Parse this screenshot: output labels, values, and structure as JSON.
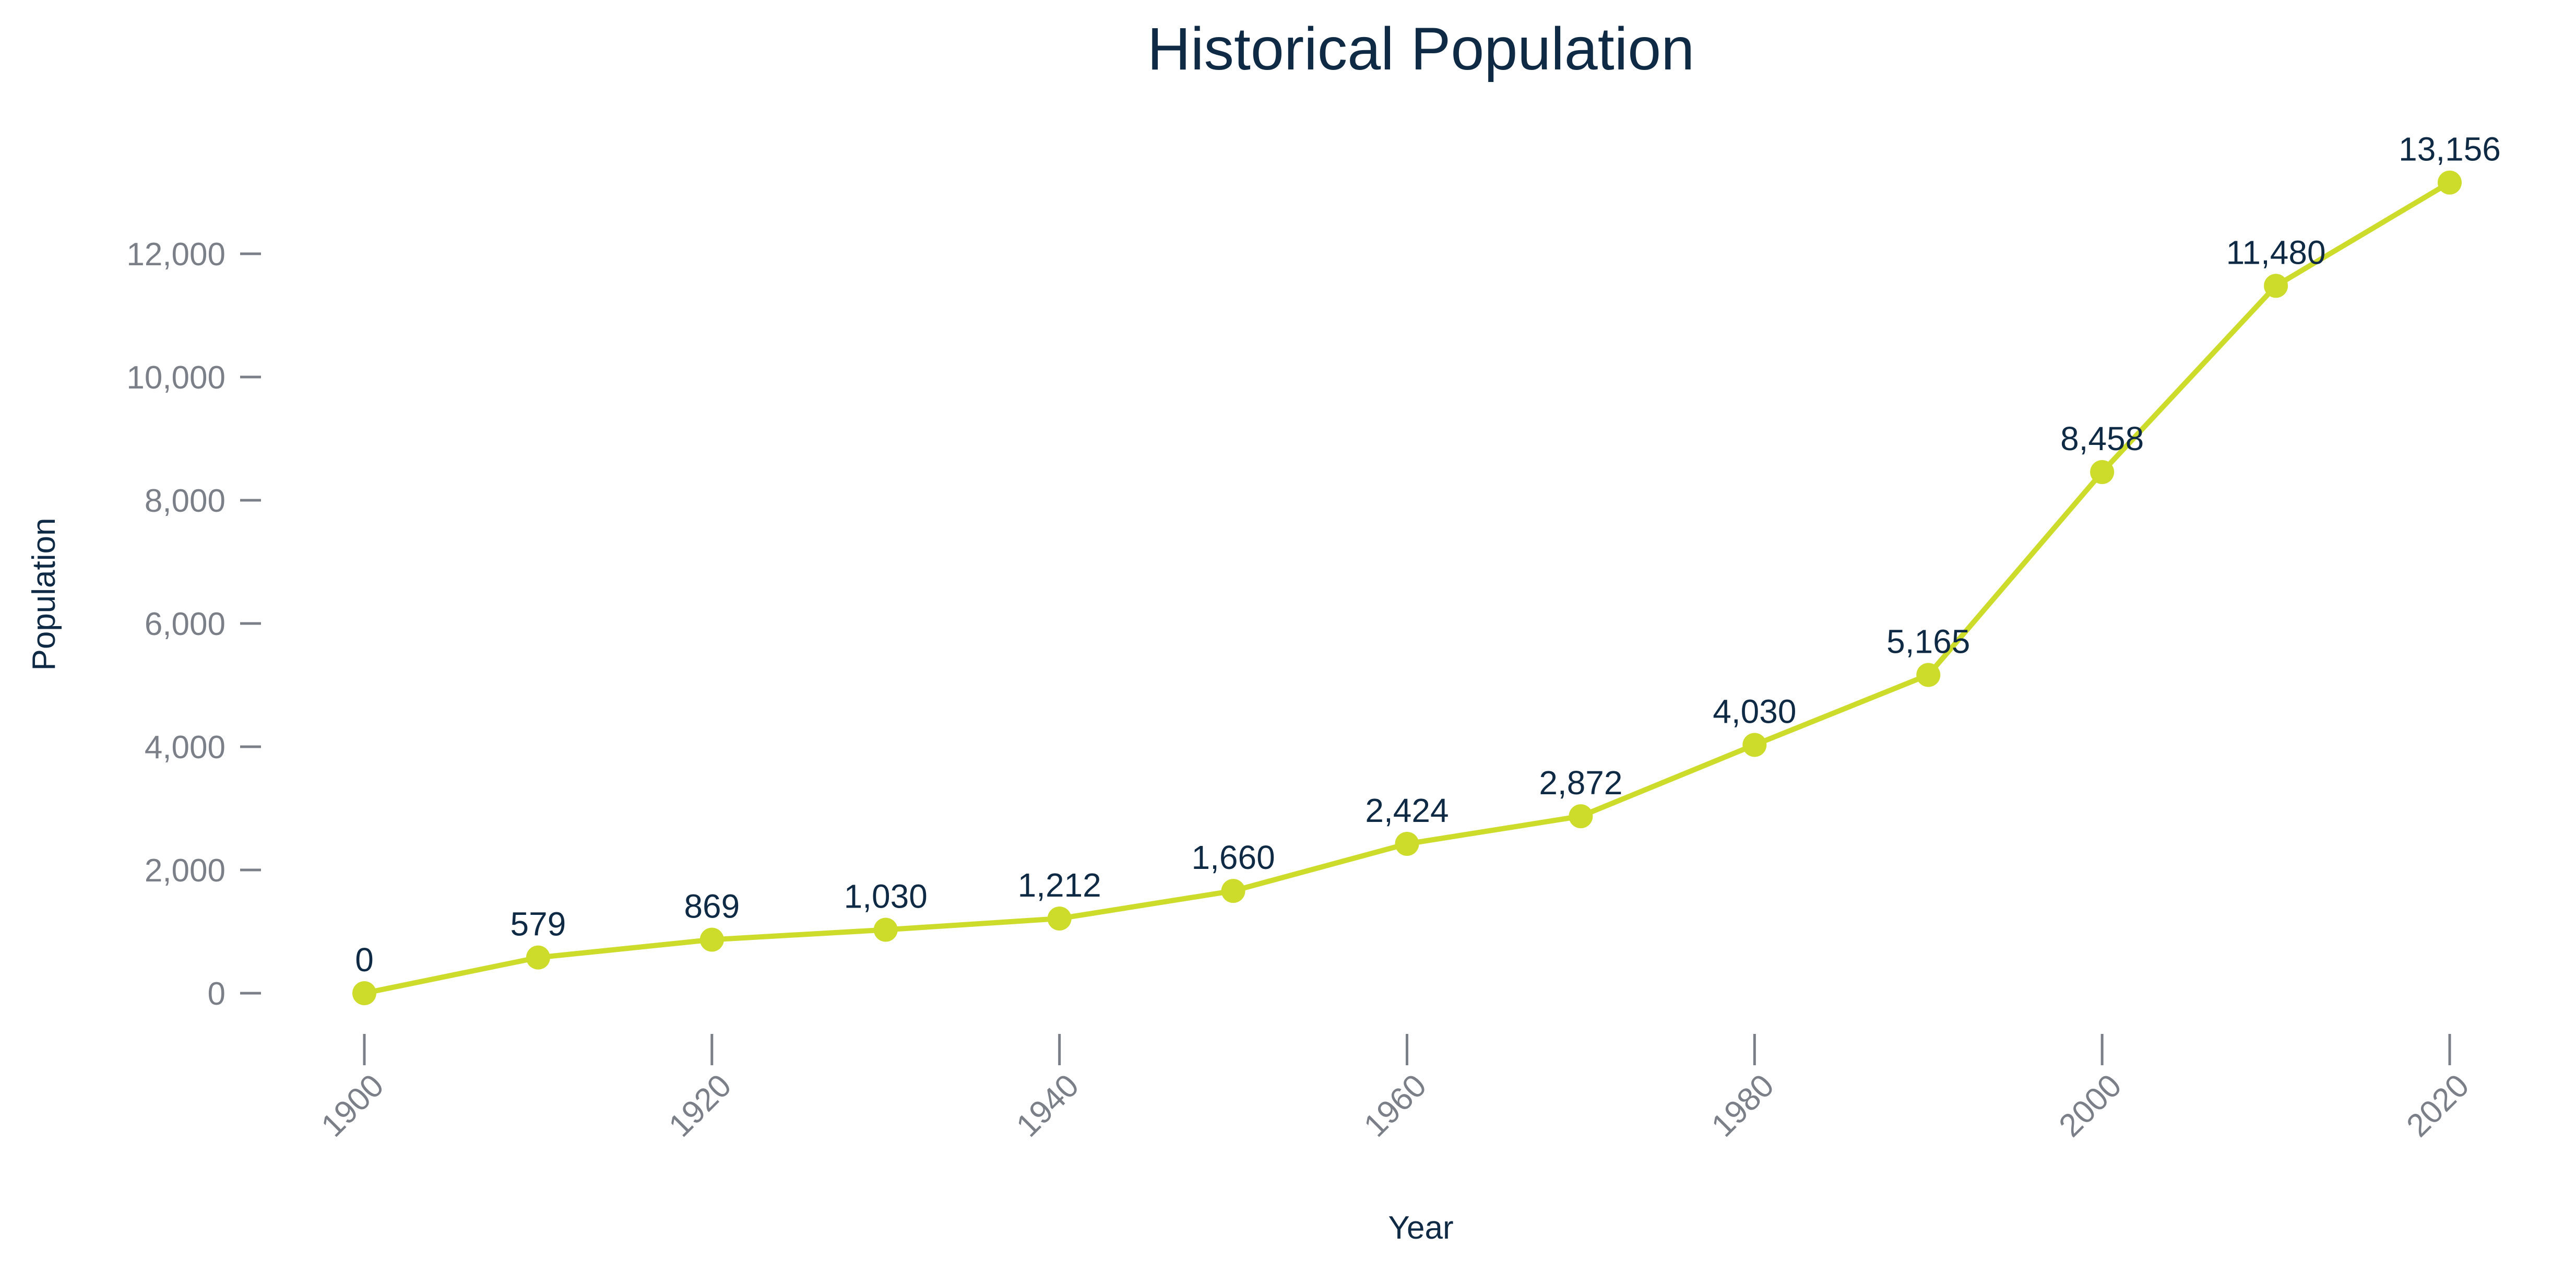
{
  "chart_data": {
    "type": "line",
    "title": "Historical Population",
    "xlabel": "Year",
    "ylabel": "Population",
    "x": [
      1900,
      1910,
      1920,
      1930,
      1940,
      1950,
      1960,
      1970,
      1980,
      1990,
      2000,
      2010,
      2020
    ],
    "y": [
      0,
      579,
      869,
      1030,
      1212,
      1660,
      2424,
      2872,
      4030,
      5165,
      8458,
      11480,
      13156
    ],
    "data_labels": [
      "0",
      "579",
      "869",
      "1,030",
      "1,212",
      "1,660",
      "2,424",
      "2,872",
      "4,030",
      "5,165",
      "8,458",
      "11,480",
      "13,156"
    ],
    "x_ticks": [
      1900,
      1920,
      1940,
      1960,
      1980,
      2000,
      2020
    ],
    "x_tick_labels": [
      "1900",
      "1920",
      "1940",
      "1960",
      "1980",
      "2000",
      "2020"
    ],
    "y_ticks": [
      0,
      2000,
      4000,
      6000,
      8000,
      10000,
      12000
    ],
    "y_tick_labels": [
      "0",
      "2,000",
      "4,000",
      "6,000",
      "8,000",
      "10,000",
      "12,000"
    ],
    "xlim": [
      1900,
      2020
    ],
    "ylim": [
      0,
      12000
    ],
    "grid": false,
    "legend": false,
    "colors": {
      "line": "#cddc2b",
      "marker": "#cddc2b",
      "title": "#0f2a44",
      "tick": "#7b7f88"
    }
  }
}
